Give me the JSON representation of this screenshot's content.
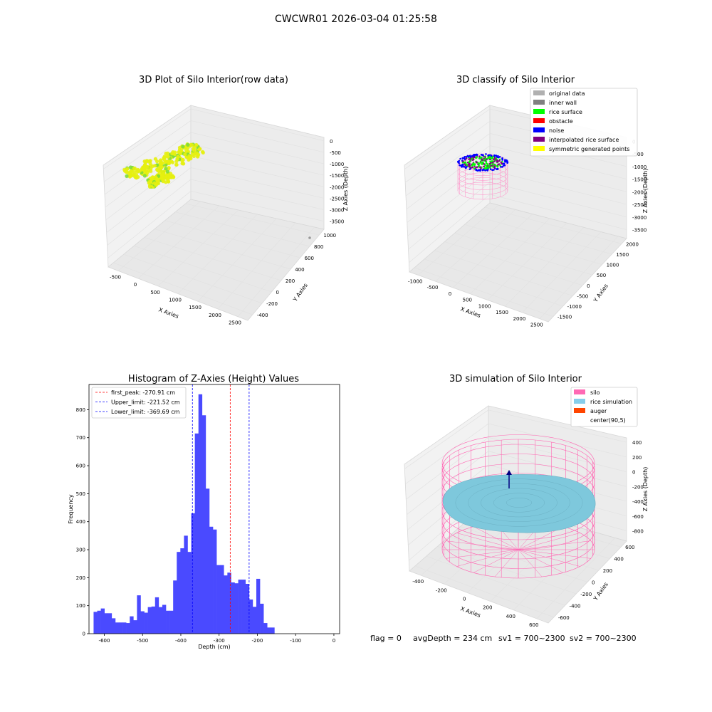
{
  "figure": {
    "suptitle": "CWCWR01 2026-03-04 01:25:58",
    "footer": {
      "flag": "flag = 0",
      "avg_depth": "avgDepth = 234 cm",
      "sv1": "sv1 = 700~2300",
      "sv2": "sv2 = 700~2300"
    }
  },
  "chart_data": [
    {
      "type": "scatter",
      "projection": "3d",
      "title": "3D Plot of Silo Interior(row data)",
      "xlabel": "X Axies",
      "ylabel": "Y Axies",
      "zlabel": "Z Axies (Depth)",
      "xticks": [
        "-500",
        "0",
        "500",
        "1000",
        "1500",
        "2000",
        "2500"
      ],
      "yticks": [
        "-400",
        "-200",
        "0",
        "200",
        "400",
        "600",
        "800",
        "1000"
      ],
      "zticks": [
        "0",
        "-500",
        "-1000",
        "-1500",
        "-2000",
        "-2500",
        "-3000",
        "-3500"
      ],
      "colors": {
        "main": "#e6ef10",
        "accent": "#7fdc3a",
        "outlier": "#999999"
      }
    },
    {
      "type": "scatter",
      "projection": "3d",
      "title": "3D classify of Silo Interior",
      "xlabel": "X Axies",
      "ylabel": "Y Axies",
      "zlabel": "Z Axies (Depth)",
      "xticks": [
        "-1000",
        "-500",
        "0",
        "500",
        "1000",
        "1500",
        "2000",
        "2500"
      ],
      "yticks": [
        "-1500",
        "-1000",
        "-500",
        "0",
        "500",
        "1000",
        "1500",
        "2000"
      ],
      "zticks": [
        "0",
        "-500",
        "-1000",
        "-1500",
        "-2000",
        "-2500",
        "-3000",
        "-3500"
      ],
      "legend": [
        {
          "label": "original data",
          "color": "#b0b0b0"
        },
        {
          "label": "inner wall",
          "color": "#808080"
        },
        {
          "label": "rice surface",
          "color": "#00ff00"
        },
        {
          "label": "obstacle",
          "color": "#ff0000"
        },
        {
          "label": "noise",
          "color": "#0000ff"
        },
        {
          "label": "interpolated rice surface",
          "color": "#800080"
        },
        {
          "label": "symmetric generated points",
          "color": "#ffff00"
        }
      ],
      "legend_position": "top-right",
      "colors": {
        "wire": "#ff8fc8"
      }
    },
    {
      "type": "bar",
      "title": "Histogram of Z-Axies (Height) Values",
      "xlabel": "Depth (cm)",
      "ylabel": "Frequency",
      "xlim": [
        -640,
        15
      ],
      "ylim": [
        0,
        890
      ],
      "xticks": [
        -600,
        -500,
        -400,
        -300,
        -200,
        -100,
        0
      ],
      "yticks": [
        0,
        100,
        200,
        300,
        400,
        500,
        600,
        700,
        800
      ],
      "bin_start": -628,
      "bin_width": 9.45,
      "values": [
        78,
        82,
        90,
        73,
        73,
        55,
        40,
        40,
        40,
        38,
        62,
        48,
        137,
        80,
        75,
        95,
        97,
        130,
        95,
        103,
        82,
        82,
        190,
        292,
        305,
        350,
        292,
        430,
        715,
        855,
        780,
        518,
        382,
        372,
        245,
        245,
        208,
        218,
        183,
        180,
        193,
        193,
        178,
        122,
        96,
        196,
        107,
        38,
        22,
        22
      ],
      "bar_color": "#4a4aff",
      "lines": [
        {
          "label": "first_peak: -270.91 cm",
          "x": -270.91,
          "color": "#ff0000"
        },
        {
          "label": "Upper_limit: -221.52 cm",
          "x": -221.52,
          "color": "#0000ff"
        },
        {
          "label": "Lower_limit: -369.69 cm",
          "x": -369.69,
          "color": "#0000ff"
        }
      ],
      "legend_position": "top-left",
      "grid": false
    },
    {
      "type": "surface",
      "projection": "3d",
      "title": "3D simulation of Silo Interior",
      "xlabel": "X Axies",
      "ylabel": "Y Axies",
      "zlabel": "Z Axies (Depth)",
      "xticks": [
        "-400",
        "-200",
        "0",
        "200",
        "400",
        "600"
      ],
      "yticks": [
        "-600",
        "-400",
        "-200",
        "0",
        "200",
        "400",
        "600"
      ],
      "zticks": [
        "400",
        "200",
        "0",
        "-200",
        "-400",
        "-600",
        "-800"
      ],
      "legend": [
        {
          "label": "silo",
          "color": "#ff69b4"
        },
        {
          "label": "rice simulation",
          "color": "#87ceeb"
        },
        {
          "label": "auger",
          "color": "#ff4500"
        },
        {
          "label": "center(90,5)",
          "color": ""
        }
      ],
      "legend_position": "top-right",
      "colors": {
        "wire": "#ff69b4",
        "surface": "#7ec8dc",
        "auger": "#000080"
      }
    }
  ]
}
